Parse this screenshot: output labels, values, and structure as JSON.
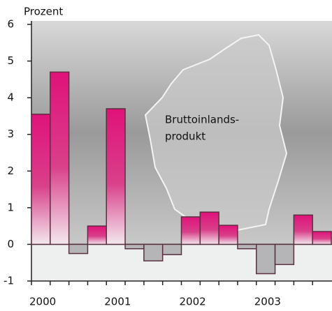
{
  "chart_data": {
    "type": "bar",
    "y_label": "Prozent",
    "annotation": [
      "Bruttoinlands-",
      "produkt"
    ],
    "categories": [
      "2000",
      null,
      null,
      null,
      "2001",
      null,
      null,
      null,
      "2002",
      null,
      null,
      null,
      "2003",
      null,
      null,
      null
    ],
    "values": [
      3.55,
      4.7,
      -0.25,
      0.5,
      3.7,
      -0.12,
      -0.45,
      -0.28,
      0.75,
      0.88,
      0.52,
      -0.12,
      -0.8,
      -0.55,
      0.8,
      0.35
    ],
    "color": "#e0127a",
    "ylim": [
      -1,
      6
    ],
    "yticks": [
      -1,
      0,
      1,
      2,
      3,
      4,
      5,
      6
    ],
    "grid": false
  }
}
